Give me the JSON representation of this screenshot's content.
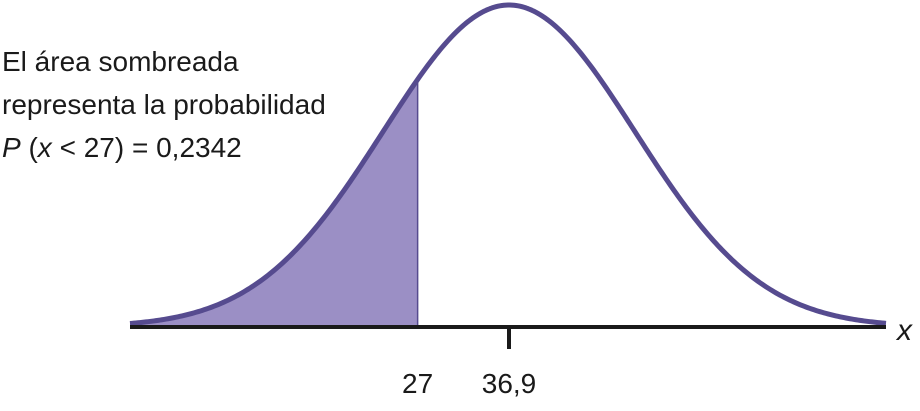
{
  "colors": {
    "curve": "#564b8f",
    "shade": "#9b8fc5",
    "axis": "#1a1a1a",
    "text": "#1a1a1a",
    "background": "#ffffff"
  },
  "annotation": {
    "line1": "El área sombreada",
    "line2": "representa la probabilidad",
    "prob_symbol": "P",
    "paren_open": " (",
    "variable": "x",
    "condition_rest": " < 27) = 0,2342"
  },
  "chart_data": {
    "type": "area",
    "distribution": "normal",
    "mean": 36.9,
    "shaded_region": "left tail",
    "shade_upper": 27,
    "probability": 0.2342,
    "xlabel": "x",
    "ylabel": "",
    "title": "",
    "x_ticks": [
      {
        "value": 27,
        "label": "27",
        "tick_mark": false
      },
      {
        "value": 36.9,
        "label": "36,9",
        "tick_mark": true
      }
    ],
    "grid": false
  }
}
